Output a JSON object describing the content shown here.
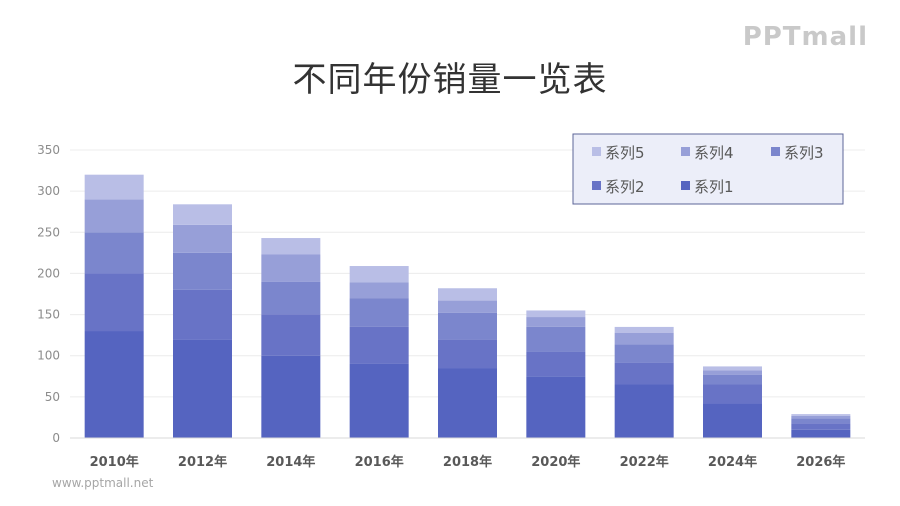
{
  "title": "不同年份销量一览表",
  "logo": "PPTmall",
  "watermark": "www.pptmall.net",
  "chart_data": {
    "type": "bar",
    "stacked": true,
    "categories": [
      "2010年",
      "2012年",
      "2014年",
      "2016年",
      "2018年",
      "2020年",
      "2022年",
      "2024年",
      "2026年"
    ],
    "series": [
      {
        "name": "系列1",
        "color": "#5564c0",
        "values": [
          130,
          120,
          100,
          90,
          85,
          75,
          65,
          42,
          10
        ]
      },
      {
        "name": "系列2",
        "color": "#6873c6",
        "values": [
          70,
          60,
          50,
          45,
          35,
          30,
          27,
          23,
          8
        ]
      },
      {
        "name": "系列3",
        "color": "#7b86cd",
        "values": [
          50,
          45,
          40,
          35,
          32,
          30,
          22,
          12,
          6
        ]
      },
      {
        "name": "系列4",
        "color": "#979fd8",
        "values": [
          40,
          34,
          33,
          19,
          15,
          12,
          14,
          5,
          3
        ]
      },
      {
        "name": "系列5",
        "color": "#b9bee6",
        "values": [
          30,
          25,
          20,
          20,
          15,
          8,
          7,
          5,
          2
        ]
      }
    ],
    "legend_order": [
      "系列5",
      "系列4",
      "系列3",
      "系列2",
      "系列1"
    ],
    "yticks": [
      0,
      50,
      100,
      150,
      200,
      250,
      300,
      350
    ],
    "ylim": [
      0,
      350
    ],
    "grid": true,
    "legend_position": "top-right"
  }
}
